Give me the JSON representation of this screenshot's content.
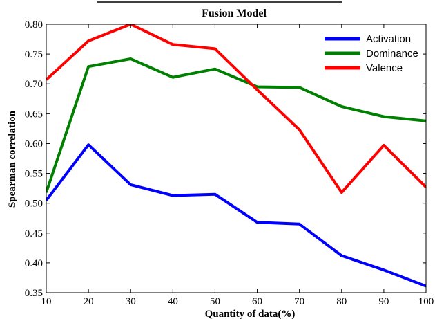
{
  "chart_data": {
    "type": "line",
    "title": "Fusion Model",
    "xlabel": "Quantity of data(%)",
    "ylabel": "Spearman correlation",
    "x": [
      10,
      20,
      30,
      40,
      50,
      60,
      70,
      80,
      90,
      100
    ],
    "xlim": [
      10,
      100
    ],
    "ylim": [
      0.35,
      0.8
    ],
    "xticks": [
      "10",
      "20",
      "30",
      "40",
      "50",
      "60",
      "70",
      "80",
      "90",
      "100"
    ],
    "yticks": [
      "0.35",
      "0.40",
      "0.45",
      "0.50",
      "0.55",
      "0.60",
      "0.65",
      "0.70",
      "0.75",
      "0.80"
    ],
    "grid": false,
    "legend_position": "top-right",
    "series": [
      {
        "name": "Activation",
        "color": "#0000ff",
        "values": [
          0.505,
          0.598,
          0.531,
          0.513,
          0.515,
          0.468,
          0.465,
          0.412,
          0.388,
          0.361
        ]
      },
      {
        "name": "Dominance",
        "color": "#008000",
        "values": [
          0.518,
          0.729,
          0.742,
          0.711,
          0.725,
          0.695,
          0.694,
          0.662,
          0.645,
          0.638
        ]
      },
      {
        "name": "Valence",
        "color": "#ff0000",
        "values": [
          0.707,
          0.772,
          0.8,
          0.766,
          0.759,
          0.69,
          0.623,
          0.518,
          0.597,
          0.527
        ]
      }
    ]
  }
}
